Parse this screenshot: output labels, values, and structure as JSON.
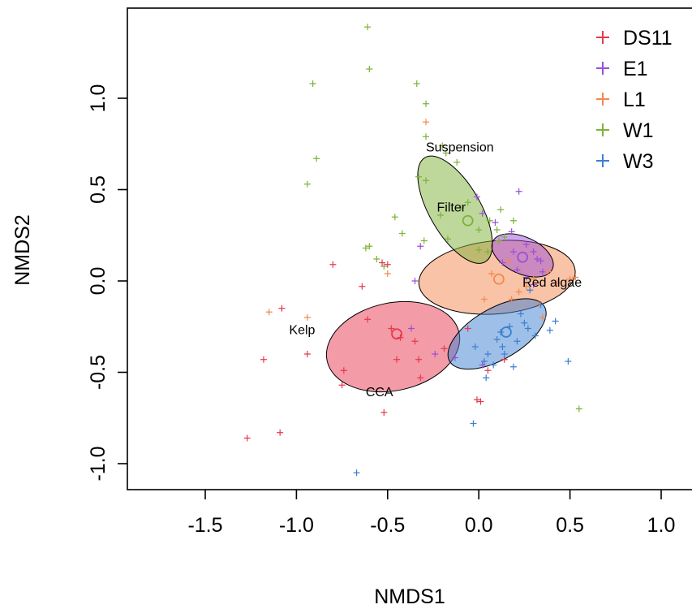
{
  "chart_data": {
    "type": "scatter",
    "xlabel": "NMDS1",
    "ylabel": "NMDS2",
    "xlim": [
      -1.88,
      1.15
    ],
    "ylim": [
      -1.14,
      1.48
    ],
    "x_ticks": [
      -1.5,
      -1.0,
      -0.5,
      0.0,
      0.5,
      1.0
    ],
    "x_tick_labels": [
      "-1.5",
      "-1.0",
      "-0.5",
      "0.0",
      "0.5",
      "1.0"
    ],
    "y_ticks": [
      -1.0,
      -0.5,
      0.0,
      0.5,
      1.0
    ],
    "y_tick_labels": [
      "-1.0",
      "-0.5",
      "0.0",
      "0.5",
      "1.0"
    ],
    "grid": false,
    "legend_position": "top-right",
    "series": [
      {
        "name": "DS11",
        "color": "#e8374f",
        "centroid": [
          -0.45,
          -0.29
        ],
        "ellipse": {
          "cx": -0.47,
          "cy": -0.36,
          "rx": 0.37,
          "ry": 0.24,
          "angle": 12
        },
        "points": [
          [
            -1.27,
            -0.86
          ],
          [
            -1.09,
            -0.83
          ],
          [
            -1.08,
            -0.15
          ],
          [
            -1.18,
            -0.43
          ],
          [
            -0.94,
            -0.4
          ],
          [
            -0.8,
            0.09
          ],
          [
            -0.74,
            -0.49
          ],
          [
            -0.75,
            -0.57
          ],
          [
            -0.64,
            -0.03
          ],
          [
            -0.61,
            -0.21
          ],
          [
            -0.53,
            0.1
          ],
          [
            -0.5,
            0.09
          ],
          [
            -0.48,
            -0.26
          ],
          [
            -0.45,
            -0.43
          ],
          [
            -0.43,
            -0.31
          ],
          [
            -0.35,
            -0.33
          ],
          [
            -0.33,
            -0.43
          ],
          [
            -0.32,
            -0.53
          ],
          [
            -0.52,
            -0.72
          ],
          [
            -0.19,
            -0.37
          ],
          [
            -0.06,
            -0.26
          ],
          [
            0.01,
            -0.66
          ],
          [
            -0.01,
            -0.65
          ],
          [
            0.05,
            -0.49
          ],
          [
            0.14,
            -0.43
          ]
        ]
      },
      {
        "name": "E1",
        "color": "#9b4fd8",
        "centroid": [
          0.24,
          0.13
        ],
        "ellipse": {
          "cx": 0.24,
          "cy": 0.14,
          "rx": 0.18,
          "ry": 0.1,
          "angle": -25
        },
        "points": [
          [
            0.22,
            0.49
          ],
          [
            -0.01,
            0.46
          ],
          [
            0.02,
            0.37
          ],
          [
            0.09,
            0.32
          ],
          [
            0.18,
            0.27
          ],
          [
            0.26,
            0.2
          ],
          [
            0.3,
            0.16
          ],
          [
            0.34,
            0.11
          ],
          [
            0.35,
            0.05
          ],
          [
            0.21,
            0.06
          ],
          [
            0.26,
            0.02
          ],
          [
            0.3,
            -0.02
          ],
          [
            0.19,
            0.16
          ],
          [
            -0.32,
            0.19
          ],
          [
            -0.37,
            -0.26
          ],
          [
            -0.24,
            -0.4
          ],
          [
            -0.13,
            -0.42
          ],
          [
            0.02,
            -0.46
          ],
          [
            -0.35,
            0.0
          ],
          [
            0.13,
            0.1
          ],
          [
            0.32,
            0.12
          ]
        ]
      },
      {
        "name": "L1",
        "color": "#f3884f",
        "centroid": [
          0.11,
          0.01
        ],
        "ellipse": {
          "cx": 0.1,
          "cy": 0.02,
          "rx": 0.43,
          "ry": 0.2,
          "angle": 5
        },
        "points": [
          [
            -0.29,
            0.87
          ],
          [
            -1.15,
            -0.17
          ],
          [
            -0.94,
            -0.2
          ],
          [
            -0.5,
            0.04
          ],
          [
            0.03,
            -0.1
          ],
          [
            0.26,
            -0.03
          ],
          [
            0.38,
            0.05
          ],
          [
            0.43,
            -0.01
          ],
          [
            0.5,
            0.01
          ],
          [
            0.53,
            0.02
          ],
          [
            0.18,
            -0.1
          ],
          [
            0.33,
            -0.13
          ],
          [
            0.3,
            0.01
          ],
          [
            0.35,
            -0.2
          ],
          [
            0.16,
            0.11
          ],
          [
            0.22,
            -0.06
          ],
          [
            0.07,
            0.04
          ]
        ]
      },
      {
        "name": "W1",
        "color": "#7db239",
        "centroid": [
          -0.06,
          0.33
        ],
        "ellipse": {
          "cx": -0.13,
          "cy": 0.39,
          "rx": 0.33,
          "ry": 0.14,
          "angle": -60
        },
        "points": [
          [
            -0.61,
            1.39
          ],
          [
            -0.6,
            1.16
          ],
          [
            -0.91,
            1.08
          ],
          [
            -0.34,
            1.08
          ],
          [
            -0.29,
            0.97
          ],
          [
            -0.29,
            0.79
          ],
          [
            -0.2,
            0.74
          ],
          [
            -0.18,
            0.7
          ],
          [
            -0.89,
            0.67
          ],
          [
            -0.94,
            0.53
          ],
          [
            -0.33,
            0.57
          ],
          [
            -0.29,
            0.55
          ],
          [
            -0.12,
            0.65
          ],
          [
            -0.46,
            0.35
          ],
          [
            -0.62,
            0.18
          ],
          [
            -0.6,
            0.19
          ],
          [
            -0.56,
            0.12
          ],
          [
            -0.52,
            0.08
          ],
          [
            -0.42,
            0.26
          ],
          [
            -0.3,
            0.22
          ],
          [
            -0.21,
            0.36
          ],
          [
            -0.1,
            0.4
          ],
          [
            0.0,
            0.28
          ],
          [
            0.06,
            0.33
          ],
          [
            0.1,
            0.28
          ],
          [
            0.14,
            0.24
          ],
          [
            0.19,
            0.33
          ],
          [
            -0.17,
            0.23
          ],
          [
            -0.06,
            0.43
          ],
          [
            0.12,
            0.39
          ],
          [
            0.0,
            0.17
          ],
          [
            0.05,
            0.16
          ],
          [
            0.55,
            -0.7
          ],
          [
            0.11,
            0.22
          ]
        ]
      },
      {
        "name": "W3",
        "color": "#3d7fd1",
        "centroid": [
          0.15,
          -0.28
        ],
        "ellipse": {
          "cx": 0.1,
          "cy": -0.29,
          "rx": 0.3,
          "ry": 0.14,
          "angle": 30
        },
        "points": [
          [
            -0.67,
            -1.05
          ],
          [
            -0.03,
            -0.78
          ],
          [
            -0.02,
            -0.36
          ],
          [
            0.03,
            -0.44
          ],
          [
            0.04,
            -0.53
          ],
          [
            0.05,
            -0.4
          ],
          [
            0.08,
            -0.46
          ],
          [
            0.1,
            -0.32
          ],
          [
            0.12,
            -0.28
          ],
          [
            0.13,
            -0.36
          ],
          [
            0.14,
            -0.4
          ],
          [
            0.17,
            -0.25
          ],
          [
            0.19,
            -0.47
          ],
          [
            0.21,
            -0.33
          ],
          [
            0.23,
            -0.18
          ],
          [
            0.25,
            -0.23
          ],
          [
            0.31,
            -0.3
          ],
          [
            0.39,
            -0.27
          ],
          [
            0.34,
            -0.13
          ],
          [
            0.28,
            -0.05
          ],
          [
            0.49,
            -0.44
          ],
          [
            0.42,
            -0.22
          ],
          [
            0.27,
            -0.26
          ]
        ]
      }
    ],
    "annotations": [
      {
        "text": "Suspension",
        "x": -0.29,
        "y": 0.71
      },
      {
        "text": "Filter",
        "x": -0.23,
        "y": 0.38
      },
      {
        "text": "Red algae",
        "x": 0.24,
        "y": -0.03
      },
      {
        "text": "Kelp",
        "x": -1.04,
        "y": -0.29
      },
      {
        "text": "CCA",
        "x": -0.62,
        "y": -0.63
      }
    ]
  }
}
